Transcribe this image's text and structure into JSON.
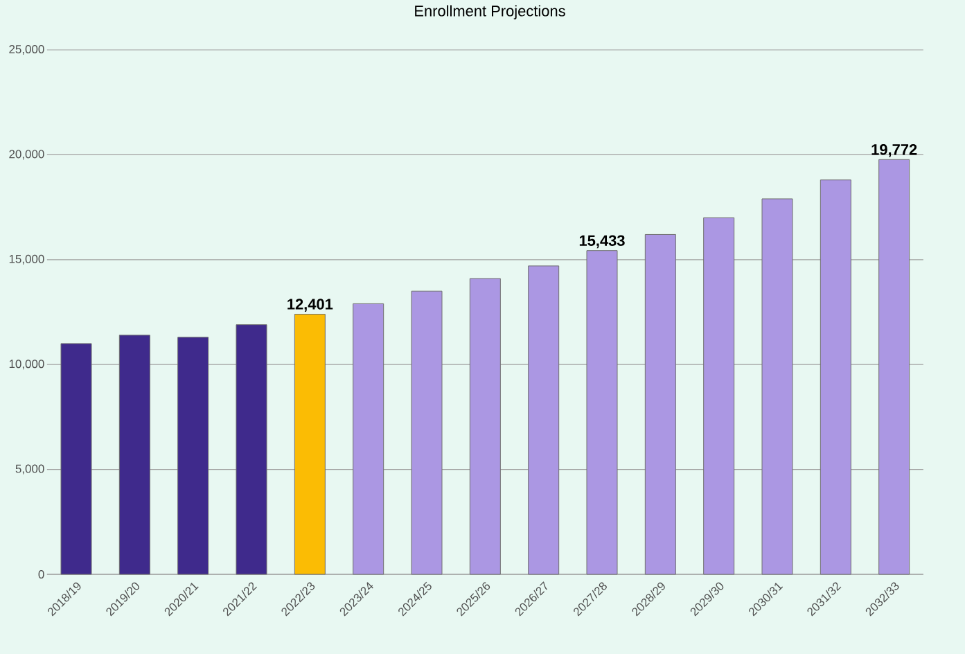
{
  "chart_data": {
    "type": "bar",
    "title": "Enrollment Projections",
    "categories": [
      "2018/19",
      "2019/20",
      "2020/21",
      "2021/22",
      "2022/23",
      "2023/24",
      "2024/25",
      "2025/26",
      "2026/27",
      "2027/28",
      "2028/29",
      "2029/30",
      "2030/31",
      "2031/32",
      "2032/33"
    ],
    "values": [
      11000,
      11400,
      11300,
      11900,
      12401,
      12900,
      13500,
      14100,
      14700,
      15433,
      16200,
      17000,
      17900,
      18800,
      19772
    ],
    "colors": [
      "#3f2a8c",
      "#3f2a8c",
      "#3f2a8c",
      "#3f2a8c",
      "#fbbc04",
      "#ab97e3",
      "#ab97e3",
      "#ab97e3",
      "#ab97e3",
      "#ab97e3",
      "#ab97e3",
      "#ab97e3",
      "#ab97e3",
      "#ab97e3",
      "#ab97e3"
    ],
    "value_labels": [
      null,
      null,
      null,
      null,
      "12,401",
      null,
      null,
      null,
      null,
      "15,433",
      null,
      null,
      null,
      null,
      "19,772"
    ],
    "ylim": [
      0,
      25000
    ],
    "yticks": [
      {
        "value": 0,
        "label": "0"
      },
      {
        "value": 5000,
        "label": "5,000"
      },
      {
        "value": 10000,
        "label": "10,000"
      },
      {
        "value": 15000,
        "label": "15,000"
      },
      {
        "value": 20000,
        "label": "20,000"
      },
      {
        "value": 25000,
        "label": "25,000"
      }
    ],
    "grid": "y"
  }
}
